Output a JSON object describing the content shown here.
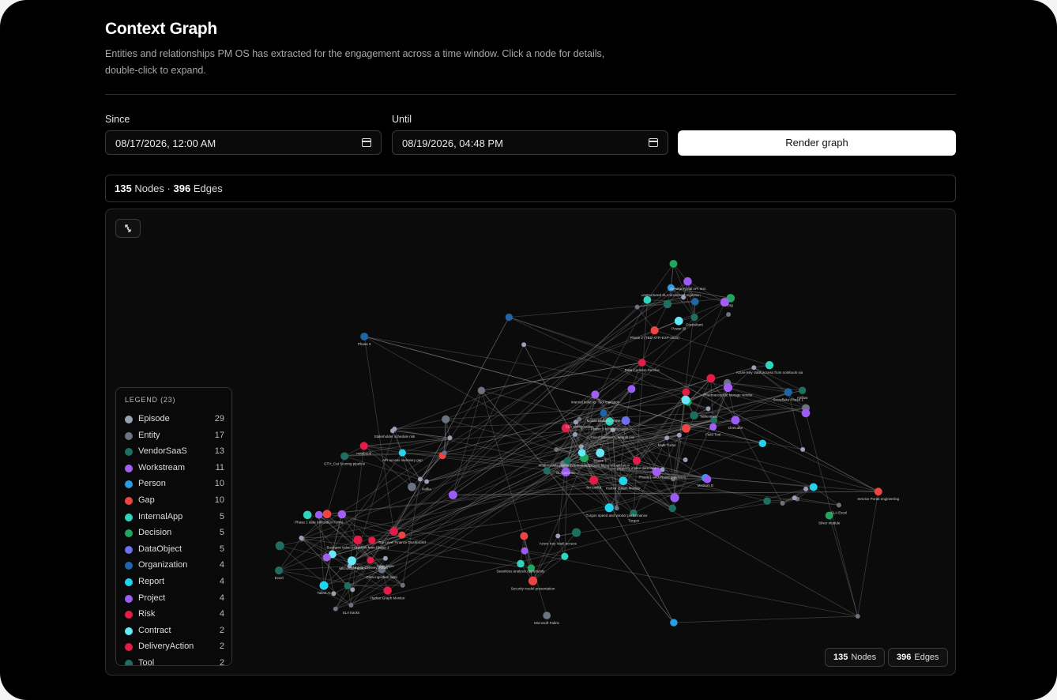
{
  "page": {
    "title": "Context Graph",
    "subtitle": "Entities and relationships PM OS has extracted for the engagement across a time window. Click a node for details, double-click to expand."
  },
  "filters": {
    "since_label": "Since",
    "since_value": "08/17/2026, 12:00 AM",
    "until_label": "Until",
    "until_value": "08/19/2026, 04:48 PM",
    "render_button": "Render graph",
    "calendar_icon": "calendar-icon"
  },
  "summary": {
    "nodes": "135",
    "nodes_label": "Nodes",
    "separator": "·",
    "edges": "396",
    "edges_label": "Edges"
  },
  "graph": {
    "expand_icon": "expand-icon",
    "legend_title": "LEGEND (23)",
    "legend": [
      {
        "label": "Episode",
        "count": "29",
        "color": "#9aa0b4"
      },
      {
        "label": "Entity",
        "count": "17",
        "color": "#6b7280"
      },
      {
        "label": "VendorSaaS",
        "count": "13",
        "color": "#1f6f61"
      },
      {
        "label": "Workstream",
        "count": "11",
        "color": "#a45ef5"
      },
      {
        "label": "Person",
        "count": "10",
        "color": "#2a9de6"
      },
      {
        "label": "Gap",
        "count": "10",
        "color": "#ef4444"
      },
      {
        "label": "InternalApp",
        "count": "5",
        "color": "#2fd4be"
      },
      {
        "label": "Decision",
        "count": "5",
        "color": "#22a55e"
      },
      {
        "label": "DataObject",
        "count": "5",
        "color": "#6e6ef0"
      },
      {
        "label": "Organization",
        "count": "4",
        "color": "#1f66a8"
      },
      {
        "label": "Report",
        "count": "4",
        "color": "#22d3ee"
      },
      {
        "label": "Project",
        "count": "4",
        "color": "#9b5cf6"
      },
      {
        "label": "Risk",
        "count": "4",
        "color": "#e11d48"
      },
      {
        "label": "Contract",
        "count": "2",
        "color": "#67e8f9"
      },
      {
        "label": "DeliveryAction",
        "count": "2",
        "color": "#e11d48"
      },
      {
        "label": "Tool",
        "count": "2",
        "color": "#1f6f61"
      }
    ],
    "labels": [
      "Medium D",
      "property intake data lake",
      "modern data platform federated project fitting visualization",
      "SLA configuration",
      "SLA access",
      "Top-Level Finance Dashboard",
      "Silver layer",
      "Mobile Delivery model",
      "Business value extraction from Phase 1",
      "unstructured SLA document ingestion",
      "Power BI",
      "Tablestraw",
      "Azure Key Vault access from notebook via",
      "notebook",
      "API access inventory gap",
      "Azure Key Vault access",
      "SLA Excel",
      "Data Curation Service",
      "Phase 3",
      "Phase 1 and Phase 2 delivery",
      "Phase 3 summarization",
      "Mobile Delivery SOW",
      "Turgon",
      "Internal build vs. Tool ingestion",
      "Turgon speed and vendor performance",
      "Phase 1 data (utilization Form)",
      "Harbor Graph Monitor",
      "Microsoft Fabric",
      "Service Portal API test",
      "Phase 2 (TBD-XTR-EXP-2021)",
      "Field Tool",
      "Snowflake Phase 1",
      "Pharmaceutical storage vendor",
      "Stakeholder schedule risk",
      "Security model presentation",
      "Seamless analysis opportunity",
      "Silver module",
      "Microsoft Fabric",
      "Service Portal engineering",
      "Fixed timeline schedule risk",
      "Multi-Turbo",
      "Sri Lanka",
      "Phase 1",
      "Harbor Graph Monitor",
      "Talent AI",
      "Excel",
      "SLA tracks",
      "Data ingestion layer",
      "PBI",
      "Consultant",
      "Airflow",
      "OneLake",
      "GTH_Cat Scoring pipeline",
      "Kafka"
    ]
  },
  "badges": {
    "nodes": "135",
    "nodes_label": "Nodes",
    "edges": "396",
    "edges_label": "Edges"
  }
}
